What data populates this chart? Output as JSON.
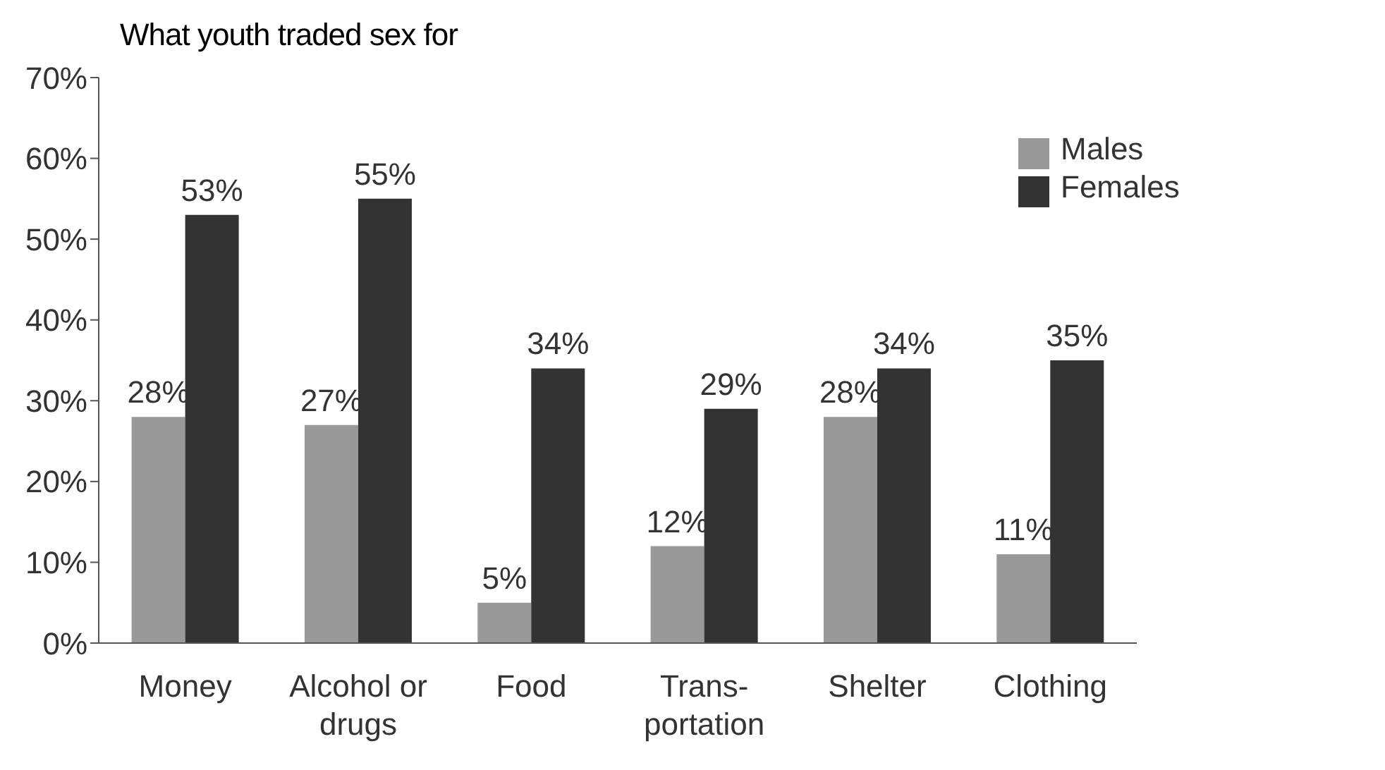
{
  "chart_data": {
    "type": "bar",
    "title": "What youth traded sex for",
    "categories": [
      "Money",
      "Alcohol or\ndrugs",
      "Food",
      "Trans-\nportation",
      "Shelter",
      "Clothing"
    ],
    "series": [
      {
        "name": "Males",
        "color": "#999999",
        "values": [
          28,
          27,
          5,
          12,
          28,
          11
        ],
        "value_labels": [
          "28%",
          "27%",
          "5%",
          "12%",
          "28%",
          "11%"
        ]
      },
      {
        "name": "Females",
        "color": "#333333",
        "values": [
          53,
          55,
          34,
          29,
          34,
          35
        ],
        "value_labels": [
          "53%",
          "55%",
          "34%",
          "29%",
          "34%",
          "35%"
        ]
      }
    ],
    "ylim": [
      0,
      70
    ],
    "yticks": [
      {
        "value": 0,
        "label": "0%"
      },
      {
        "value": 10,
        "label": "10%"
      },
      {
        "value": 20,
        "label": "20%"
      },
      {
        "value": 30,
        "label": "30%"
      },
      {
        "value": 40,
        "label": "40%"
      },
      {
        "value": 50,
        "label": "50%"
      },
      {
        "value": 60,
        "label": "60%"
      },
      {
        "value": 70,
        "label": "70%"
      }
    ],
    "grid": false,
    "legend": "top right"
  }
}
